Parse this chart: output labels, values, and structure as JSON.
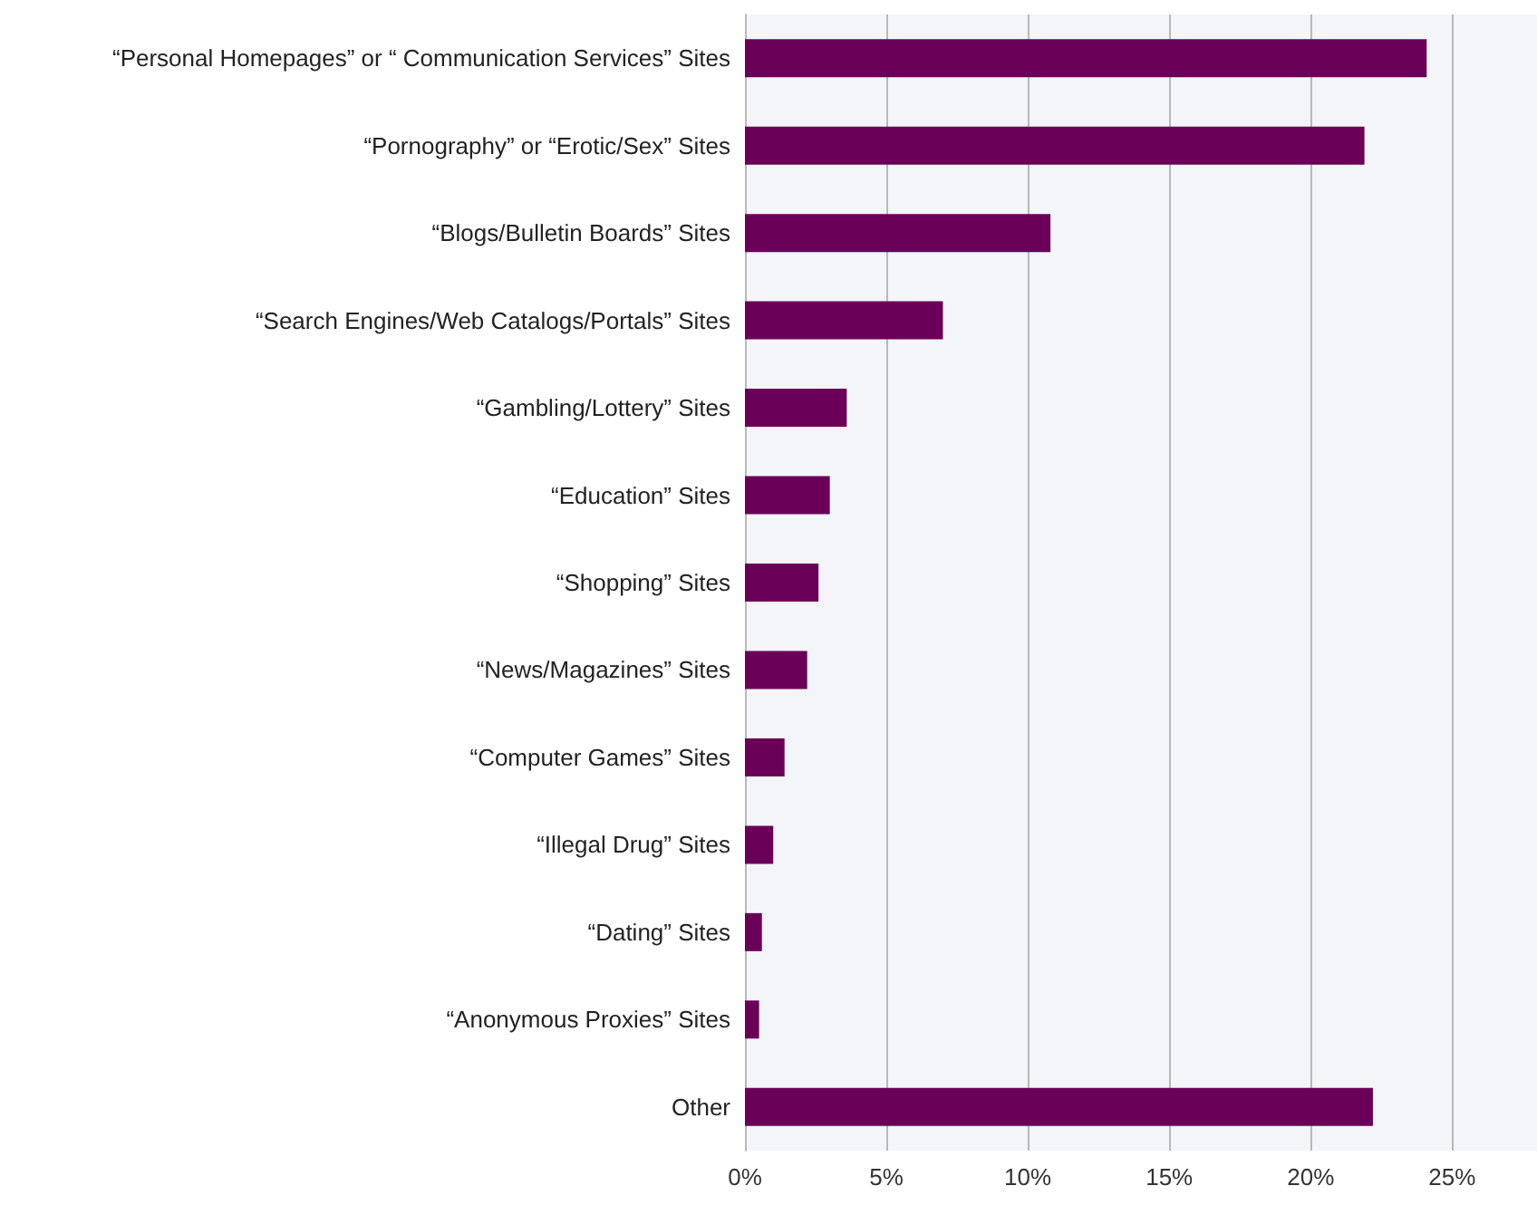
{
  "chart_data": {
    "type": "bar",
    "orientation": "horizontal",
    "categories": [
      "“Personal Homepages” or “ Communication Services” Sites",
      "“Pornography” or “Erotic/Sex” Sites",
      "“Blogs/Bulletin Boards” Sites",
      "“Search Engines/Web Catalogs/Portals” Sites",
      "“Gambling/Lottery” Sites",
      "“Education” Sites",
      "“Shopping” Sites",
      "“News/Magazines” Sites",
      "“Computer Games” Sites",
      "“Illegal Drug” Sites",
      "“Dating” Sites",
      "“Anonymous Proxies” Sites",
      "Other"
    ],
    "values": [
      24.1,
      21.9,
      10.8,
      7.0,
      3.6,
      3.0,
      2.6,
      2.2,
      1.4,
      1.0,
      0.6,
      0.5,
      22.2
    ],
    "color": "#6b0059",
    "xlim": [
      0,
      28
    ],
    "xticks": [
      {
        "value": 0,
        "label": "0%"
      },
      {
        "value": 5,
        "label": "5%"
      },
      {
        "value": 10,
        "label": "10%"
      },
      {
        "value": 15,
        "label": "15%"
      },
      {
        "value": 20,
        "label": "20%"
      },
      {
        "value": 25,
        "label": "25%"
      }
    ],
    "grid": "x"
  }
}
